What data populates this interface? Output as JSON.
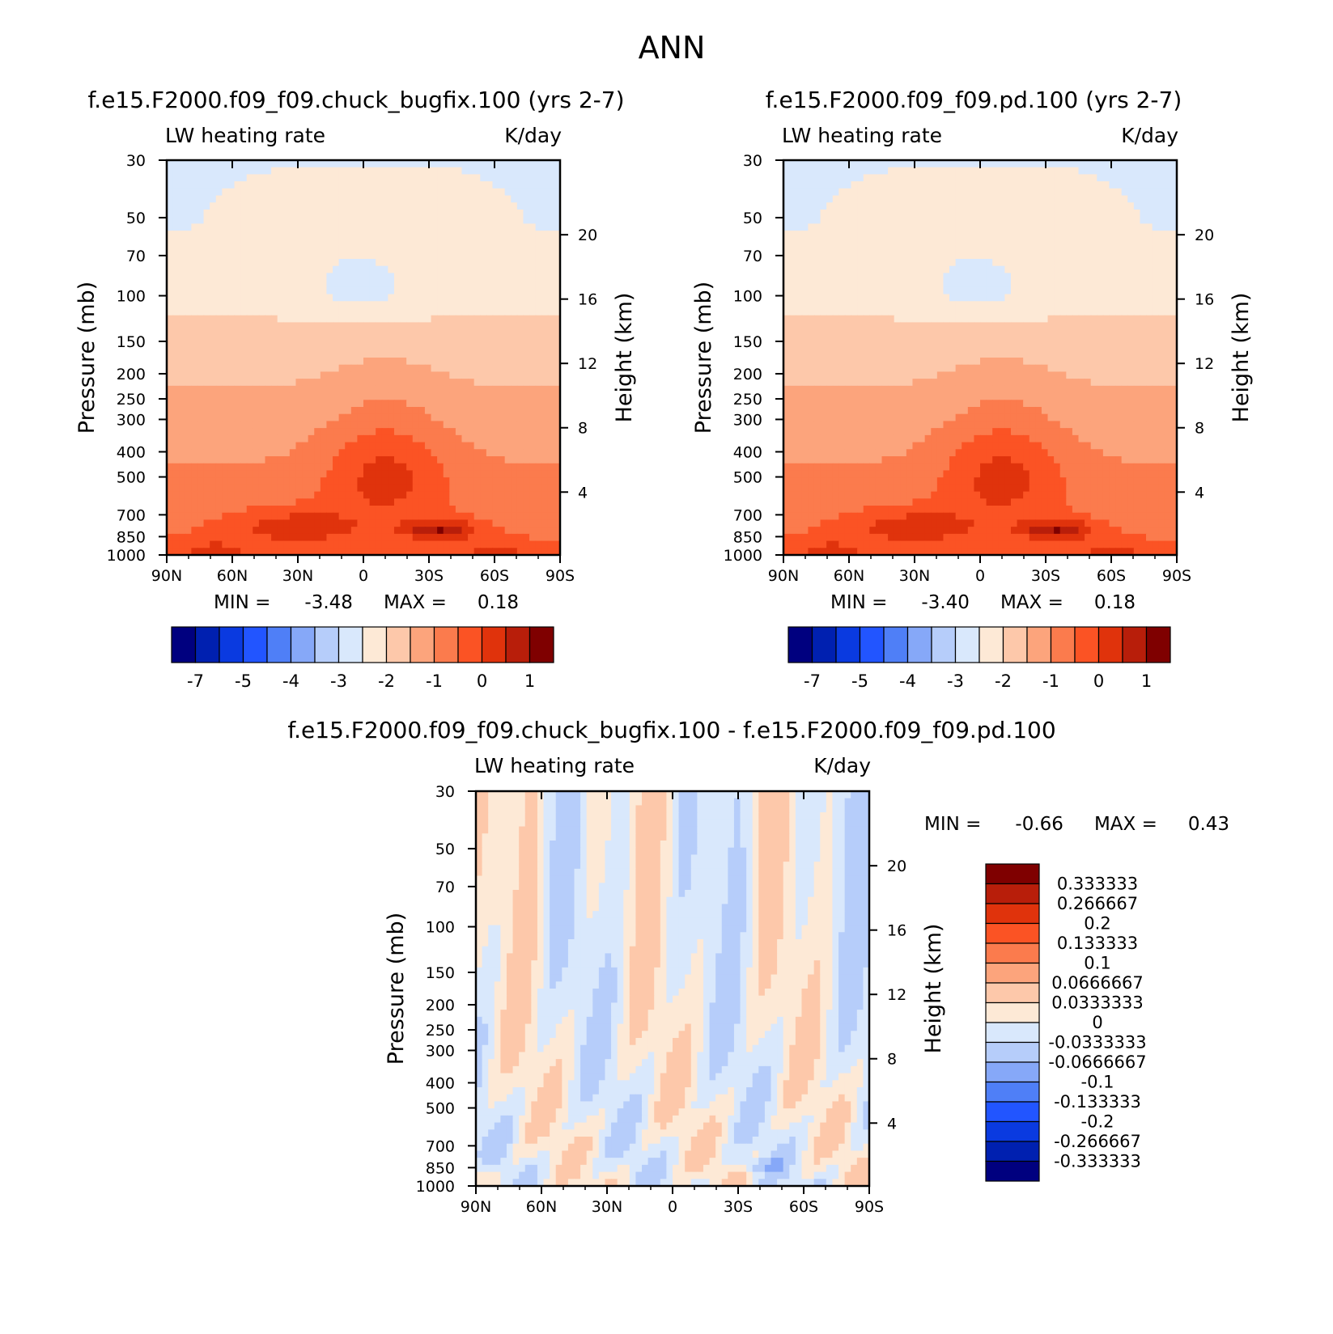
{
  "page_title": "ANN",
  "chart_data": [
    {
      "type": "heatmap",
      "id": "panel1",
      "title": "f.e15.F2000.f09_f09.chuck_bugfix.100 (yrs 2-7)",
      "field_label": "LW heating rate",
      "units": "K/day",
      "ylabel": "Pressure (mb)",
      "y2label": "Height (km)",
      "x_ticks": [
        "90N",
        "60N",
        "30N",
        "0",
        "30S",
        "60S",
        "90S"
      ],
      "y_ticks": [
        "30",
        "50",
        "70",
        "100",
        "150",
        "200",
        "250",
        "300",
        "400",
        "500",
        "700",
        "850",
        "1000"
      ],
      "y2_ticks": [
        "20",
        "16",
        "12",
        "8",
        "4"
      ],
      "min_label": "MIN =",
      "min_value": "-3.48",
      "max_label": "MAX =",
      "max_value": "0.18",
      "colorbar": {
        "orientation": "horizontal",
        "labels": [
          "-7",
          "-5",
          "-4",
          "-3",
          "-2",
          "-1",
          "0",
          "1"
        ],
        "colors": [
          "#00007f",
          "#0020b0",
          "#0a3ae0",
          "#2255ff",
          "#4f7ff7",
          "#86a8f8",
          "#b6cdfa",
          "#d9e8fc",
          "#fde9d6",
          "#fdc8aa",
          "#fca47c",
          "#fb7b4d",
          "#fb5324",
          "#e0330c",
          "#b81e0a",
          "#7f0000"
        ]
      }
    },
    {
      "type": "heatmap",
      "id": "panel2",
      "title": "f.e15.F2000.f09_f09.pd.100 (yrs 2-7)",
      "field_label": "LW heating rate",
      "units": "K/day",
      "ylabel": "Pressure (mb)",
      "y2label": "Height (km)",
      "x_ticks": [
        "90N",
        "60N",
        "30N",
        "0",
        "30S",
        "60S",
        "90S"
      ],
      "y_ticks": [
        "30",
        "50",
        "70",
        "100",
        "150",
        "200",
        "250",
        "300",
        "400",
        "500",
        "700",
        "850",
        "1000"
      ],
      "y2_ticks": [
        "20",
        "16",
        "12",
        "8",
        "4"
      ],
      "min_label": "MIN =",
      "min_value": "-3.40",
      "max_label": "MAX =",
      "max_value": "0.18",
      "colorbar": {
        "orientation": "horizontal",
        "labels": [
          "-7",
          "-5",
          "-4",
          "-3",
          "-2",
          "-1",
          "0",
          "1"
        ],
        "colors": [
          "#00007f",
          "#0020b0",
          "#0a3ae0",
          "#2255ff",
          "#4f7ff7",
          "#86a8f8",
          "#b6cdfa",
          "#d9e8fc",
          "#fde9d6",
          "#fdc8aa",
          "#fca47c",
          "#fb7b4d",
          "#fb5324",
          "#e0330c",
          "#b81e0a",
          "#7f0000"
        ]
      }
    },
    {
      "type": "heatmap",
      "id": "panel3",
      "title": "f.e15.F2000.f09_f09.chuck_bugfix.100 - f.e15.F2000.f09_f09.pd.100",
      "field_label": "LW heating rate",
      "units": "K/day",
      "ylabel": "Pressure (mb)",
      "y2label": "Height (km)",
      "x_ticks": [
        "90N",
        "60N",
        "30N",
        "0",
        "30S",
        "60S",
        "90S"
      ],
      "y_ticks": [
        "30",
        "50",
        "70",
        "100",
        "150",
        "200",
        "250",
        "300",
        "400",
        "500",
        "700",
        "850",
        "1000"
      ],
      "y2_ticks": [
        "20",
        "16",
        "12",
        "8",
        "4"
      ],
      "min_label": "MIN =",
      "min_value": "-0.66",
      "max_label": "MAX =",
      "max_value": "0.43",
      "colorbar": {
        "orientation": "vertical",
        "labels": [
          "0.333333",
          "0.266667",
          "0.2",
          "0.133333",
          "0.1",
          "0.0666667",
          "0.0333333",
          "0",
          "-0.0333333",
          "-0.0666667",
          "-0.1",
          "-0.133333",
          "-0.2",
          "-0.266667",
          "-0.333333"
        ],
        "colors": [
          "#7f0000",
          "#b81e0a",
          "#e0330c",
          "#fb5324",
          "#fb7b4d",
          "#fca47c",
          "#fdc8aa",
          "#fde9d6",
          "#d9e8fc",
          "#b6cdfa",
          "#86a8f8",
          "#4f7ff7",
          "#2255ff",
          "#0a3ae0",
          "#0020b0",
          "#00007f"
        ]
      }
    }
  ]
}
